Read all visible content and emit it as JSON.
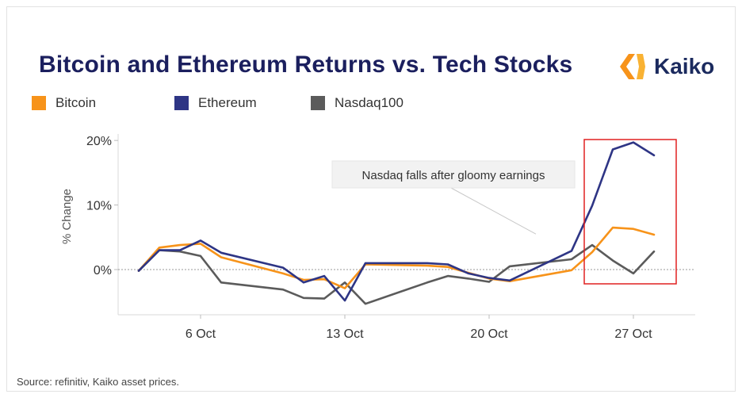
{
  "title": "Bitcoin and Ethereum Returns vs. Tech Stocks",
  "logo": {
    "text": "Kaiko",
    "icon": "kaiko-logo-icon"
  },
  "source": "Source: refinitiv, Kaiko asset prices.",
  "colors": {
    "bitcoin": "#f7931a",
    "ethereum": "#2e3585",
    "nasdaq": "#5b5b5b",
    "highlight": "#e02020"
  },
  "legend": [
    "Bitcoin",
    "Ethereum",
    "Nasdaq100"
  ],
  "annotation": "Nasdaq falls after gloomy earnings",
  "chart_data": {
    "type": "line",
    "ylabel": "% Change",
    "xlabel": "",
    "ylim": [
      -7,
      21
    ],
    "yticks": [
      0,
      10,
      20
    ],
    "ytick_labels": [
      "0%",
      "10%",
      "20%"
    ],
    "x_ticks": [
      "6 Oct",
      "13 Oct",
      "20 Oct",
      "27 Oct"
    ],
    "x": [
      "2022-10-03",
      "2022-10-04",
      "2022-10-05",
      "2022-10-06",
      "2022-10-07",
      "2022-10-10",
      "2022-10-11",
      "2022-10-12",
      "2022-10-13",
      "2022-10-14",
      "2022-10-17",
      "2022-10-18",
      "2022-10-19",
      "2022-10-20",
      "2022-10-21",
      "2022-10-24",
      "2022-10-25",
      "2022-10-26",
      "2022-10-27",
      "2022-10-28"
    ],
    "series": [
      {
        "name": "Bitcoin",
        "values": [
          -0.2,
          3.4,
          3.8,
          4.0,
          1.9,
          -0.6,
          -1.6,
          -1.5,
          -2.9,
          0.8,
          0.6,
          0.4,
          -0.5,
          -1.4,
          -1.8,
          -0.1,
          2.7,
          6.5,
          6.3,
          5.4
        ]
      },
      {
        "name": "Ethereum",
        "values": [
          -0.2,
          3.0,
          3.0,
          4.5,
          2.6,
          0.3,
          -2.0,
          -1.0,
          -4.8,
          1.0,
          1.0,
          0.8,
          -0.6,
          -1.3,
          -1.7,
          2.9,
          9.9,
          18.6,
          19.7,
          17.7
        ]
      },
      {
        "name": "Nasdaq100",
        "values": [
          -0.2,
          3.0,
          2.8,
          2.1,
          -2.0,
          -3.1,
          -4.4,
          -4.5,
          -2.0,
          -5.3,
          -2.0,
          -1.0,
          -1.4,
          -1.9,
          0.5,
          1.6,
          3.8,
          1.4,
          -0.6,
          2.8
        ]
      }
    ],
    "grid": false,
    "legend_position": "top-left"
  }
}
